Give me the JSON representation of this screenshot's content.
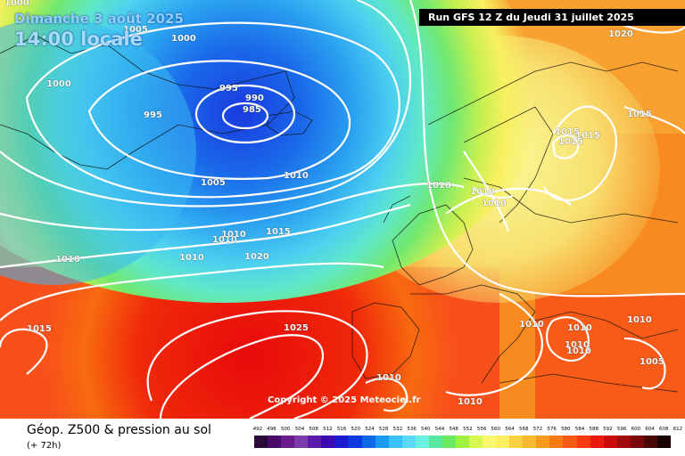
{
  "header": {
    "date": "Dimanche 3 août 2025",
    "time": "14:00 locale",
    "run": "Run GFS 12 Z du Jeudi 31 juillet 2025"
  },
  "copyright": "Copyright © 2025 Meteociel.fr",
  "footer": {
    "title": "Géop. Z500 & pression au sol",
    "subtitle": "(+ 72h)"
  },
  "pressure_labels": [
    {
      "text": "1000"
    },
    {
      "text": "1005"
    },
    {
      "text": "1000"
    },
    {
      "text": "1000"
    },
    {
      "text": "995"
    },
    {
      "text": "995"
    },
    {
      "text": "990"
    },
    {
      "text": "985"
    },
    {
      "text": "1005"
    },
    {
      "text": "1010"
    },
    {
      "text": "1020"
    },
    {
      "text": "1015"
    },
    {
      "text": "1015"
    },
    {
      "text": "1015"
    },
    {
      "text": "1015"
    },
    {
      "text": "1010"
    },
    {
      "text": "1010"
    },
    {
      "text": "1010"
    },
    {
      "text": "1010"
    },
    {
      "text": "1010"
    },
    {
      "text": "1010"
    },
    {
      "text": "1015"
    },
    {
      "text": "1010"
    },
    {
      "text": "1020"
    },
    {
      "text": "1020"
    },
    {
      "text": "1015"
    },
    {
      "text": "1025"
    },
    {
      "text": "1010"
    },
    {
      "text": "1010"
    },
    {
      "text": "1010"
    },
    {
      "text": "1010"
    },
    {
      "text": "1010"
    },
    {
      "text": "1005"
    },
    {
      "text": "1010"
    },
    {
      "text": "1010"
    }
  ],
  "scale": {
    "labels": [
      "492",
      "496",
      "500",
      "504",
      "508",
      "512",
      "516",
      "520",
      "524",
      "528",
      "532",
      "536",
      "540",
      "544",
      "548",
      "552",
      "556",
      "560",
      "564",
      "568",
      "572",
      "576",
      "580",
      "584",
      "588",
      "592",
      "596",
      "600",
      "604",
      "608",
      "612"
    ],
    "colors": [
      "#2a0a3a",
      "#4a0a6a",
      "#6a1a8a",
      "#7a3aaa",
      "#5a1aaa",
      "#3a0ab0",
      "#1a1ad0",
      "#0a3ae0",
      "#0a6ae8",
      "#1a9af0",
      "#3ac0f8",
      "#5ad8f8",
      "#6af0e0",
      "#5ae8a0",
      "#6aea60",
      "#a0f040",
      "#d8f850",
      "#f8f870",
      "#f8ee60",
      "#f8d040",
      "#f8b830",
      "#f89a20",
      "#f87a10",
      "#f85a10",
      "#f83a10",
      "#e81a0a",
      "#c80a0a",
      "#a00a0a",
      "#7a0a0a",
      "#4a0505",
      "#1a0000"
    ]
  }
}
